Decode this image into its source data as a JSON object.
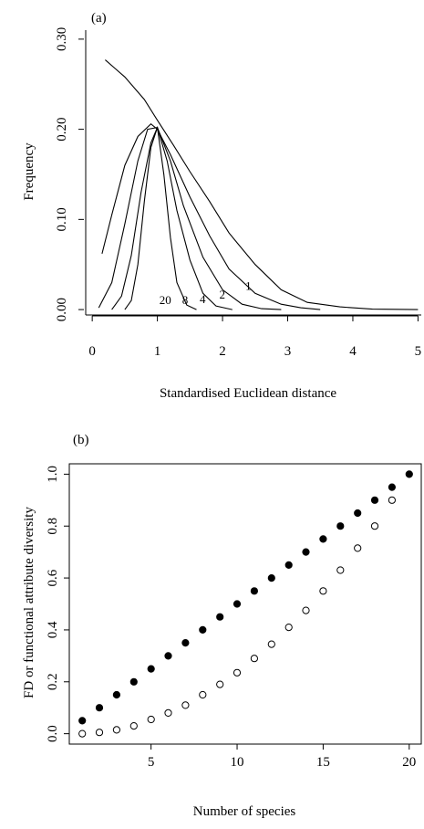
{
  "chart_data": [
    {
      "panel_label": "(a)",
      "type": "line",
      "xlabel": "Standardised Euclidean distance",
      "ylabel": "Frequency",
      "xlim": [
        -0.1,
        5.05
      ],
      "ylim": [
        -0.006,
        0.31
      ],
      "xticks": [
        0,
        1,
        2,
        3,
        4,
        5
      ],
      "xtick_labels": [
        "0",
        "1",
        "2",
        "3",
        "4",
        "5"
      ],
      "yticks": [
        0.0,
        0.1,
        0.2,
        0.3
      ],
      "ytick_labels": [
        "0.00",
        "0.10",
        "0.20",
        "0.30"
      ],
      "frame": "left-bottom-open",
      "series": [
        {
          "name": "1",
          "x": [
            0.2,
            0.5,
            0.8,
            1.0,
            1.25,
            1.5,
            1.8,
            2.1,
            2.5,
            2.9,
            3.3,
            3.8,
            4.3,
            5.0
          ],
          "y": [
            0.277,
            0.258,
            0.233,
            0.21,
            0.182,
            0.153,
            0.12,
            0.085,
            0.05,
            0.022,
            0.008,
            0.003,
            0.0005,
            0.0
          ]
        },
        {
          "name": "2",
          "x": [
            0.15,
            0.3,
            0.5,
            0.7,
            0.9,
            1.0,
            1.2,
            1.5,
            1.8,
            2.1,
            2.5,
            2.9,
            3.2,
            3.5
          ],
          "y": [
            0.062,
            0.105,
            0.16,
            0.192,
            0.206,
            0.2,
            0.172,
            0.125,
            0.082,
            0.045,
            0.018,
            0.006,
            0.002,
            0.0
          ]
        },
        {
          "name": "4",
          "x": [
            0.1,
            0.3,
            0.5,
            0.7,
            0.85,
            1.0,
            1.2,
            1.4,
            1.7,
            2.0,
            2.3,
            2.6,
            2.9
          ],
          "y": [
            0.002,
            0.03,
            0.095,
            0.165,
            0.2,
            0.202,
            0.165,
            0.115,
            0.058,
            0.022,
            0.006,
            0.001,
            0.0
          ]
        },
        {
          "name": "8",
          "x": [
            0.3,
            0.45,
            0.6,
            0.75,
            0.9,
            1.0,
            1.15,
            1.3,
            1.5,
            1.7,
            1.9,
            2.15
          ],
          "y": [
            0.0,
            0.015,
            0.06,
            0.13,
            0.185,
            0.202,
            0.165,
            0.11,
            0.055,
            0.018,
            0.004,
            0.0
          ]
        },
        {
          "name": "20",
          "x": [
            0.5,
            0.6,
            0.7,
            0.8,
            0.9,
            1.0,
            1.1,
            1.2,
            1.3,
            1.45,
            1.6
          ],
          "y": [
            0.0,
            0.01,
            0.05,
            0.12,
            0.18,
            0.202,
            0.15,
            0.08,
            0.03,
            0.005,
            0.0
          ]
        }
      ],
      "curve_labels": [
        {
          "text": "1",
          "x": 2.35,
          "y": 0.022
        },
        {
          "text": "2",
          "x": 1.95,
          "y": 0.012
        },
        {
          "text": "4",
          "x": 1.65,
          "y": 0.007
        },
        {
          "text": "8",
          "x": 1.38,
          "y": 0.006
        },
        {
          "text": "20",
          "x": 1.03,
          "y": 0.006
        }
      ]
    },
    {
      "panel_label": "(b)",
      "type": "scatter",
      "xlabel": "Number of species",
      "ylabel": "FD or functional attribute diversity",
      "xlim": [
        0.25,
        20.7
      ],
      "ylim": [
        -0.04,
        1.04
      ],
      "xticks": [
        5,
        10,
        15,
        20
      ],
      "xtick_labels": [
        "5",
        "10",
        "15",
        "20"
      ],
      "yticks": [
        0.0,
        0.2,
        0.4,
        0.6,
        0.8,
        1.0
      ],
      "ytick_labels": [
        "0.0",
        "0.2",
        "0.4",
        "0.6",
        "0.8",
        "1.0"
      ],
      "frame": "box",
      "series": [
        {
          "marker": "filled-circle",
          "x": [
            1,
            2,
            3,
            4,
            5,
            6,
            7,
            8,
            9,
            10,
            11,
            12,
            13,
            14,
            15,
            16,
            17,
            18,
            19,
            20
          ],
          "y": [
            0.05,
            0.1,
            0.15,
            0.2,
            0.25,
            0.3,
            0.35,
            0.4,
            0.45,
            0.5,
            0.55,
            0.6,
            0.65,
            0.7,
            0.75,
            0.8,
            0.85,
            0.9,
            0.95,
            1.0
          ]
        },
        {
          "marker": "open-circle",
          "x": [
            1,
            2,
            3,
            4,
            5,
            6,
            7,
            8,
            9,
            10,
            11,
            12,
            13,
            14,
            15,
            16,
            17,
            18,
            19
          ],
          "y": [
            0.0,
            0.005,
            0.015,
            0.03,
            0.055,
            0.08,
            0.11,
            0.15,
            0.19,
            0.235,
            0.29,
            0.345,
            0.41,
            0.475,
            0.55,
            0.63,
            0.715,
            0.8,
            0.9
          ]
        }
      ]
    }
  ]
}
